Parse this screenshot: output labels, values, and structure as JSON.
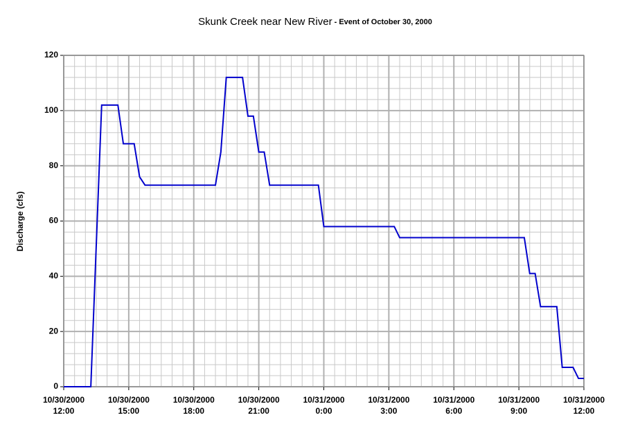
{
  "chart_data": {
    "type": "line",
    "title": "Skunk Creek near New River",
    "subtitle": " - Event of October 30, 2000",
    "y_label": "Discharge (cfs)",
    "x": [
      "10/30/2000 12:00",
      "10/30/2000 13:15",
      "10/30/2000 13:45",
      "10/30/2000 14:30",
      "10/30/2000 14:45",
      "10/30/2000 15:15",
      "10/30/2000 15:30",
      "10/30/2000 15:45",
      "10/30/2000 19:00",
      "10/30/2000 19:15",
      "10/30/2000 19:30",
      "10/30/2000 20:15",
      "10/30/2000 20:30",
      "10/30/2000 20:45",
      "10/30/2000 21:00",
      "10/30/2000 21:15",
      "10/30/2000 21:30",
      "10/30/2000 23:45",
      "10/31/2000 0:00",
      "10/31/2000 3:15",
      "10/31/2000 3:30",
      "10/31/2000 9:15",
      "10/31/2000 9:30",
      "10/31/2000 9:45",
      "10/31/2000 10:00",
      "10/31/2000 10:45",
      "10/31/2000 11:00",
      "10/31/2000 11:30",
      "10/31/2000 11:45",
      "10/31/2000 12:00"
    ],
    "series": [
      {
        "name": "Discharge",
        "color": "#0000cc",
        "values": [
          0,
          0,
          102,
          102,
          88,
          88,
          76,
          73,
          73,
          85,
          112,
          112,
          98,
          98,
          85,
          85,
          73,
          73,
          58,
          58,
          54,
          54,
          41,
          41,
          29,
          29,
          7,
          7,
          3,
          3
        ]
      }
    ],
    "xlim": [
      "10/30/2000 12:00",
      "10/31/2000 12:00"
    ],
    "xticks": [
      "10/30/2000 12:00",
      "10/30/2000 15:00",
      "10/30/2000 18:00",
      "10/30/2000 21:00",
      "10/31/2000 0:00",
      "10/31/2000 3:00",
      "10/31/2000 6:00",
      "10/31/2000 9:00",
      "10/31/2000 12:00"
    ],
    "ylim": [
      0,
      120
    ],
    "yticks": [
      0,
      20,
      40,
      60,
      80,
      100,
      120
    ],
    "grid": true
  }
}
